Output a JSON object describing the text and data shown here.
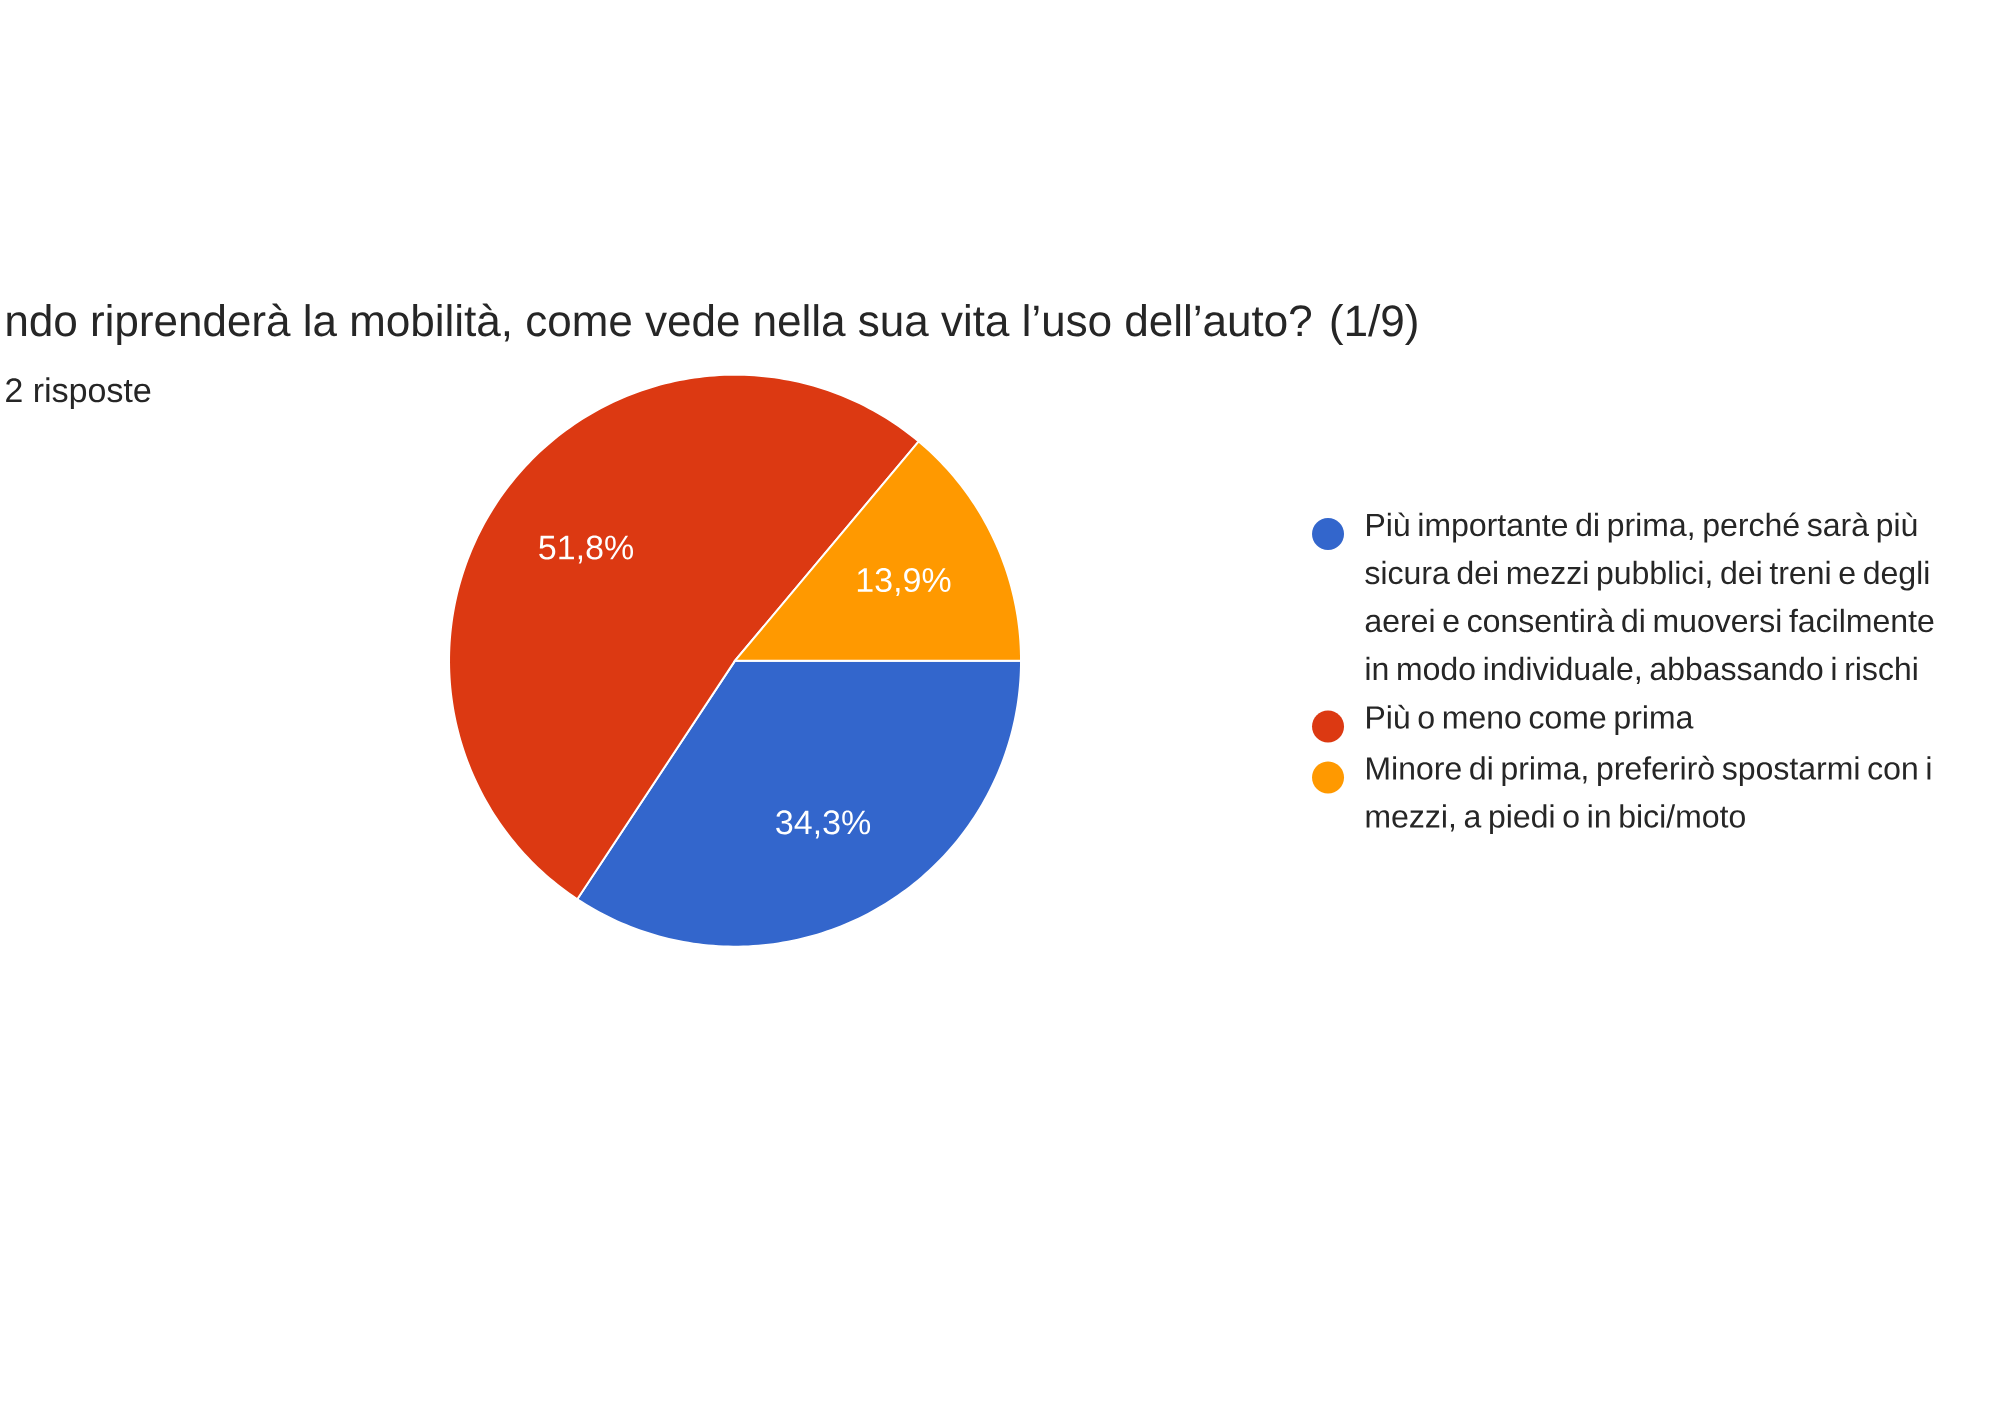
{
  "chart_data": {
    "type": "pie",
    "title": "ndo riprenderà la mobilità, come vede nella sua vita l’uso dell’auto?  (1/9)",
    "subtitle": "2 risposte",
    "categories": [
      "Più importante di prima, perché sarà più sicura dei mezzi pubblici, dei treni e degli aerei e consentirà di muoversi facilmente in modo individuale, abbassando i rischi",
      "Più o meno come prima",
      "Minore di prima, preferirò spostarmi con i mezzi, a piedi o in bici/moto"
    ],
    "values": [
      34.3,
      51.8,
      13.9
    ],
    "value_labels": [
      "34,3%",
      "51,8%",
      "13,9%"
    ],
    "colors": [
      "#3366cc",
      "#dc3912",
      "#ff9900"
    ],
    "legend": "right"
  }
}
